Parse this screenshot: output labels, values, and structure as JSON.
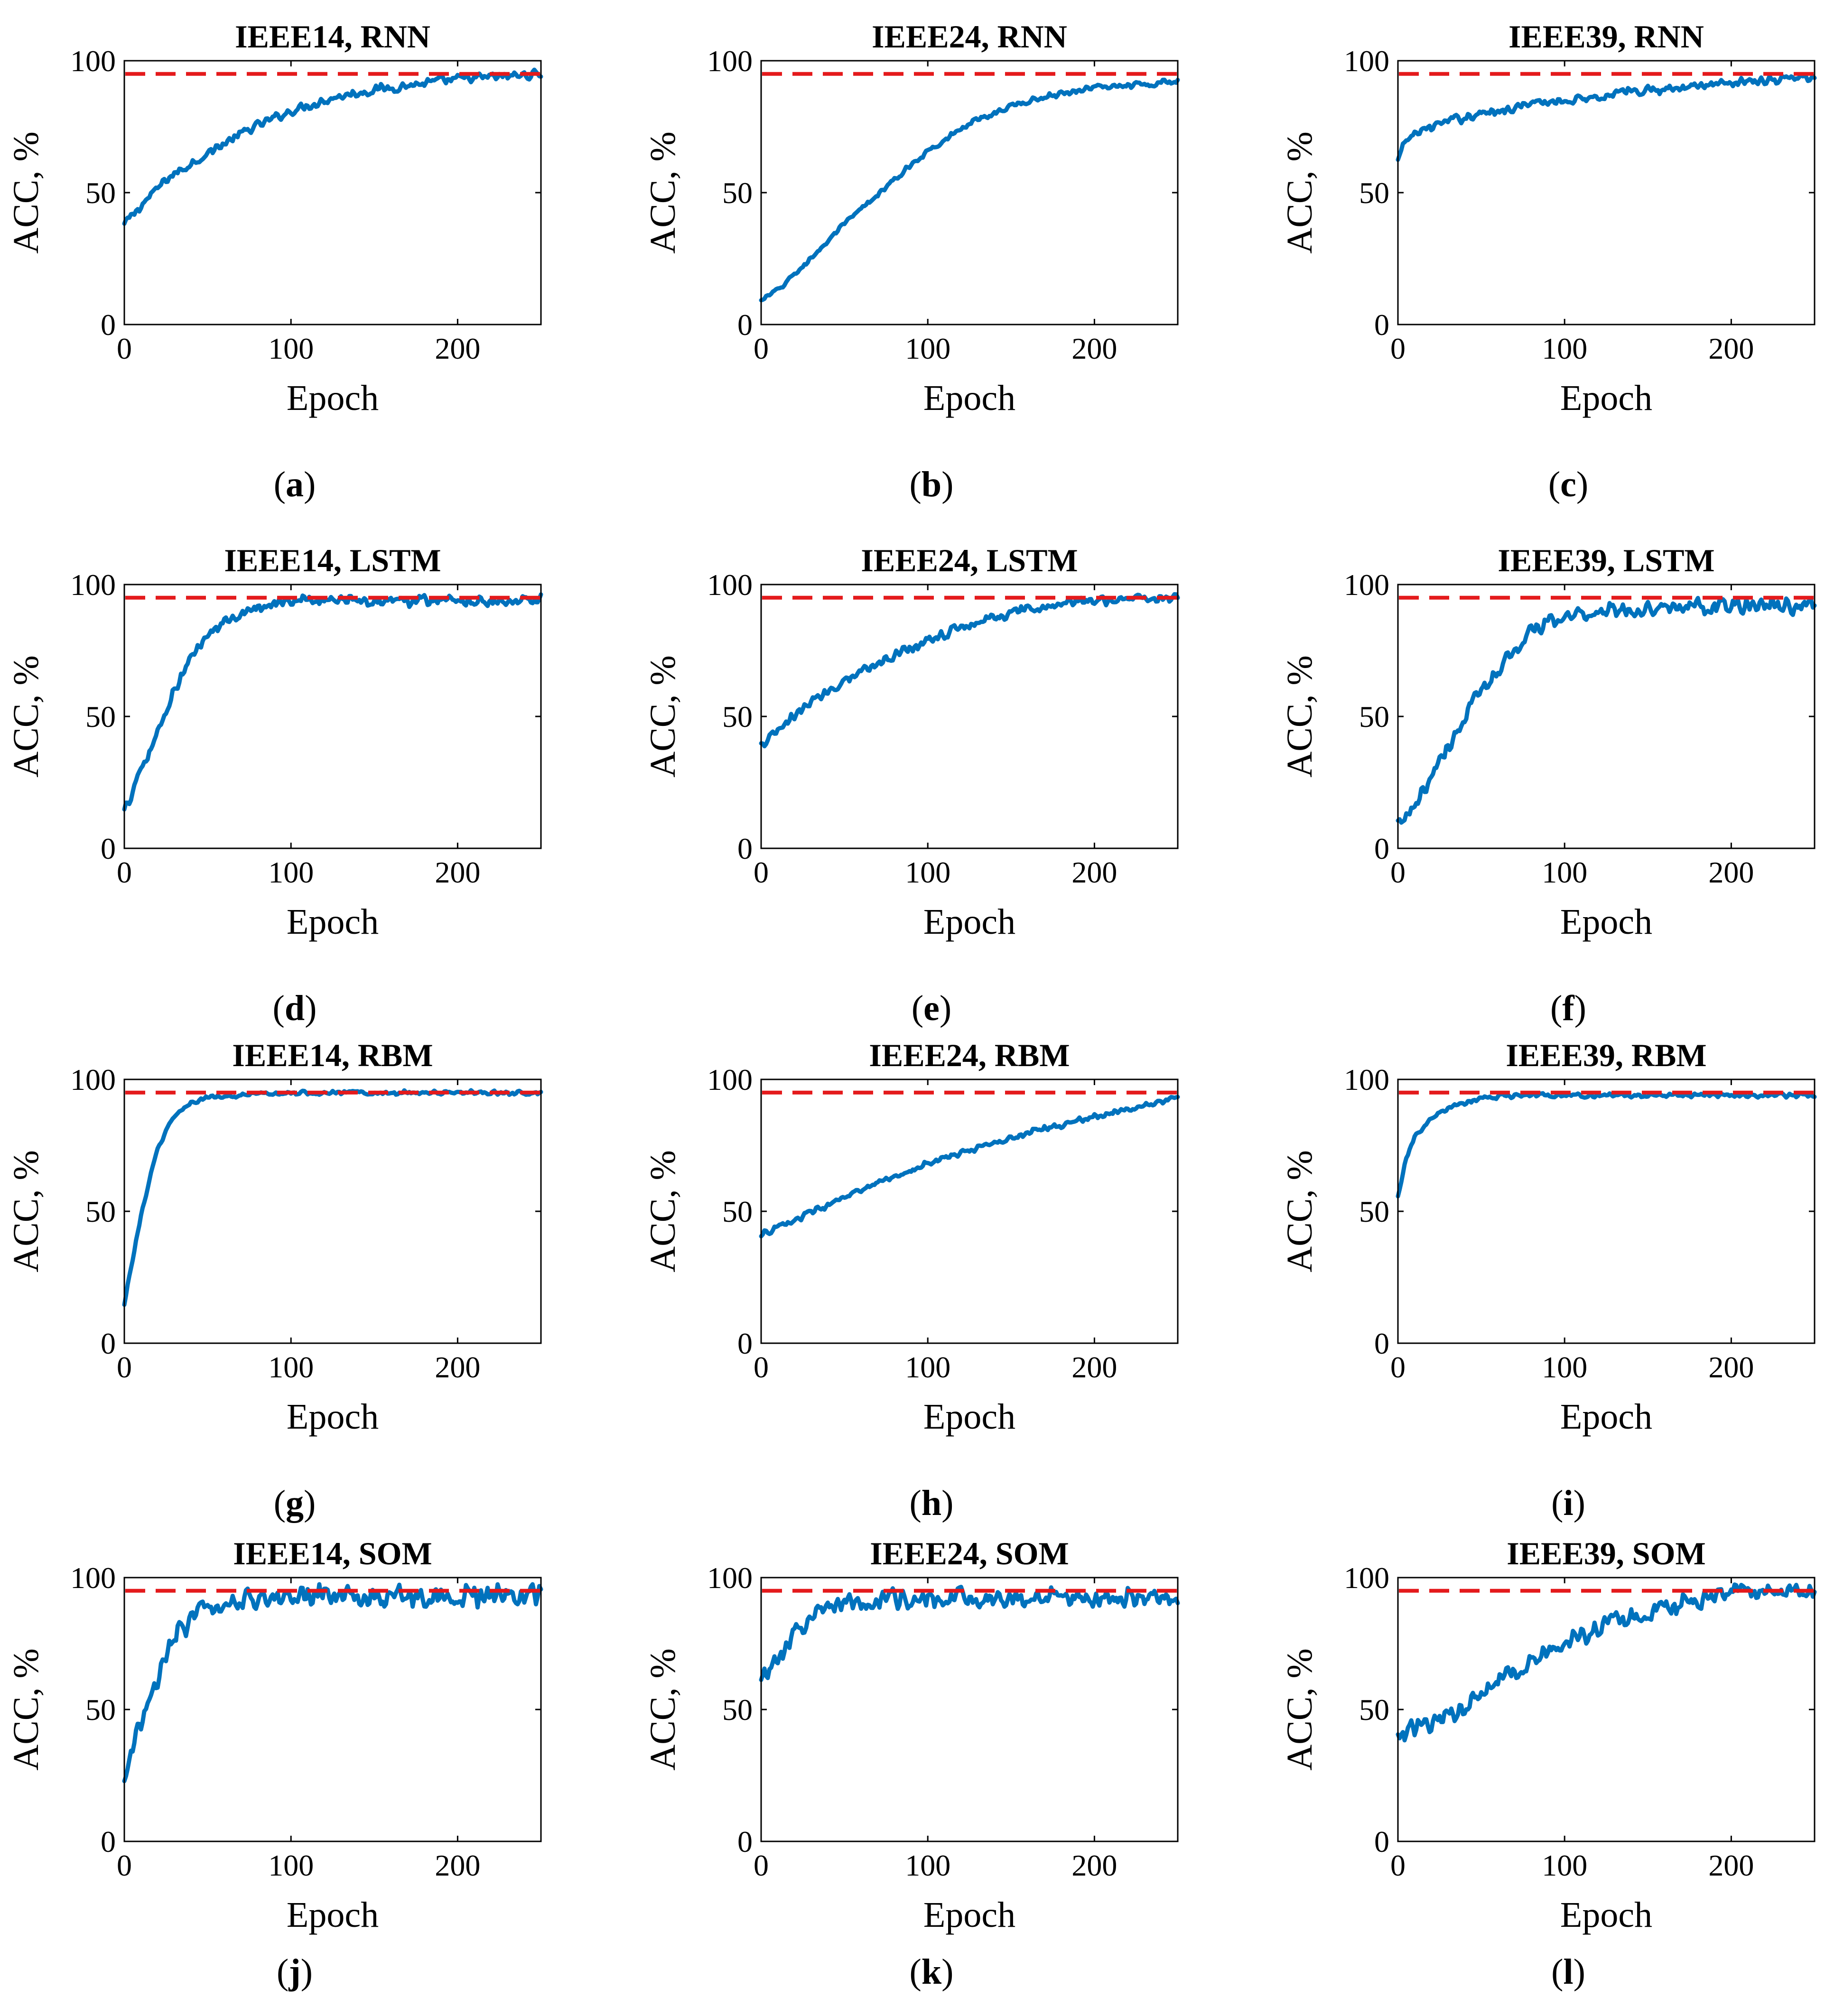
{
  "figure": {
    "rows": 4,
    "cols": 3,
    "reference_line": {
      "value": 95,
      "color": "#e41a1c",
      "style": "dashed"
    },
    "series_color": "#0072bd",
    "frame_color": "#000000"
  },
  "chart_data": [
    {
      "type": "line",
      "title": "IEEE14, RNN",
      "caption_letter": "a",
      "xlabel": "Epoch",
      "ylabel": "ACC, %",
      "xlim": [
        0,
        250
      ],
      "ylim": [
        0,
        100
      ],
      "xticks": [
        0,
        100,
        200
      ],
      "yticks": [
        0,
        50,
        100
      ],
      "reference_y": 95,
      "series": [
        {
          "name": "ACC",
          "x": [
            0,
            10,
            25,
            50,
            75,
            100,
            125,
            150,
            175,
            200,
            225,
            250
          ],
          "y": [
            38,
            45,
            55,
            65,
            74,
            81,
            86,
            89,
            91,
            93,
            94,
            95
          ],
          "noise": 2.0
        }
      ]
    },
    {
      "type": "line",
      "title": "IEEE24, RNN",
      "caption_letter": "b",
      "xlabel": "Epoch",
      "ylabel": "ACC, %",
      "xlim": [
        0,
        250
      ],
      "ylim": [
        0,
        100
      ],
      "xticks": [
        0,
        100,
        200
      ],
      "yticks": [
        0,
        50,
        100
      ],
      "reference_y": 95,
      "series": [
        {
          "name": "ACC",
          "x": [
            0,
            10,
            25,
            50,
            75,
            100,
            125,
            150,
            175,
            200,
            225,
            250
          ],
          "y": [
            9,
            13,
            22,
            38,
            52,
            66,
            76,
            83,
            87,
            90,
            91,
            92
          ],
          "noise": 1.2
        }
      ]
    },
    {
      "type": "line",
      "title": "IEEE39, RNN",
      "caption_letter": "c",
      "xlabel": "Epoch",
      "ylabel": "ACC, %",
      "xlim": [
        0,
        250
      ],
      "ylim": [
        0,
        100
      ],
      "xticks": [
        0,
        100,
        200
      ],
      "yticks": [
        0,
        50,
        100
      ],
      "reference_y": 95,
      "series": [
        {
          "name": "ACC",
          "x": [
            0,
            5,
            15,
            30,
            50,
            75,
            100,
            125,
            150,
            175,
            200,
            225,
            250
          ],
          "y": [
            62,
            70,
            74,
            77,
            80,
            83,
            85,
            87,
            89,
            90,
            92,
            93,
            94
          ],
          "noise": 2.0
        }
      ]
    },
    {
      "type": "line",
      "title": "IEEE14, LSTM",
      "caption_letter": "d",
      "xlabel": "Epoch",
      "ylabel": "ACC, %",
      "xlim": [
        0,
        250
      ],
      "ylim": [
        0,
        100
      ],
      "xticks": [
        0,
        100,
        200
      ],
      "yticks": [
        0,
        50,
        100
      ],
      "reference_y": 95,
      "series": [
        {
          "name": "ACC",
          "x": [
            0,
            5,
            15,
            25,
            35,
            45,
            60,
            75,
            90,
            110,
            130,
            160,
            200,
            250
          ],
          "y": [
            14,
            22,
            36,
            52,
            66,
            77,
            86,
            91,
            93,
            94,
            94,
            94,
            94,
            94
          ],
          "noise": 2.6
        }
      ]
    },
    {
      "type": "line",
      "title": "IEEE24, LSTM",
      "caption_letter": "e",
      "xlabel": "Epoch",
      "ylabel": "ACC, %",
      "xlim": [
        0,
        250
      ],
      "ylim": [
        0,
        100
      ],
      "xticks": [
        0,
        100,
        200
      ],
      "yticks": [
        0,
        50,
        100
      ],
      "reference_y": 95,
      "series": [
        {
          "name": "ACC",
          "x": [
            0,
            10,
            25,
            50,
            75,
            100,
            125,
            150,
            175,
            200,
            225,
            250
          ],
          "y": [
            39,
            44,
            53,
            64,
            72,
            79,
            85,
            89,
            92,
            94,
            95,
            95
          ],
          "noise": 2.3
        }
      ]
    },
    {
      "type": "line",
      "title": "IEEE39, LSTM",
      "caption_letter": "f",
      "xlabel": "Epoch",
      "ylabel": "ACC, %",
      "xlim": [
        0,
        250
      ],
      "ylim": [
        0,
        100
      ],
      "xticks": [
        0,
        100,
        200
      ],
      "yticks": [
        0,
        50,
        100
      ],
      "reference_y": 95,
      "series": [
        {
          "name": "ACC",
          "x": [
            0,
            10,
            20,
            35,
            50,
            65,
            80,
            100,
            120,
            150,
            200,
            250
          ],
          "y": [
            9,
            14,
            28,
            44,
            60,
            72,
            82,
            88,
            90,
            91,
            92,
            92
          ],
          "noise": 3.6
        }
      ]
    },
    {
      "type": "line",
      "title": "IEEE14, RBM",
      "caption_letter": "g",
      "xlabel": "Epoch",
      "ylabel": "ACC, %",
      "xlim": [
        0,
        250
      ],
      "ylim": [
        0,
        100
      ],
      "xticks": [
        0,
        100,
        200
      ],
      "yticks": [
        0,
        50,
        100
      ],
      "reference_y": 95,
      "series": [
        {
          "name": "ACC",
          "x": [
            0,
            5,
            10,
            15,
            20,
            25,
            30,
            40,
            50,
            75,
            100,
            150,
            200,
            250
          ],
          "y": [
            15,
            32,
            48,
            62,
            73,
            81,
            86,
            91,
            93,
            94,
            95,
            95,
            95,
            95
          ],
          "noise": 1.0
        }
      ]
    },
    {
      "type": "line",
      "title": "IEEE24, RBM",
      "caption_letter": "h",
      "xlabel": "Epoch",
      "ylabel": "ACC, %",
      "xlim": [
        0,
        250
      ],
      "ylim": [
        0,
        100
      ],
      "xticks": [
        0,
        100,
        200
      ],
      "yticks": [
        0,
        50,
        100
      ],
      "reference_y": 95,
      "series": [
        {
          "name": "ACC",
          "x": [
            0,
            25,
            50,
            75,
            100,
            125,
            150,
            175,
            200,
            225,
            250
          ],
          "y": [
            41,
            48,
            55,
            62,
            68,
            73,
            78,
            82,
            86,
            89,
            93
          ],
          "noise": 1.3
        }
      ]
    },
    {
      "type": "line",
      "title": "IEEE39, RBM",
      "caption_letter": "i",
      "xlabel": "Epoch",
      "ylabel": "ACC, %",
      "xlim": [
        0,
        250
      ],
      "ylim": [
        0,
        100
      ],
      "xticks": [
        0,
        100,
        200
      ],
      "yticks": [
        0,
        50,
        100
      ],
      "reference_y": 95,
      "series": [
        {
          "name": "ACC",
          "x": [
            0,
            5,
            10,
            20,
            30,
            40,
            50,
            75,
            100,
            150,
            200,
            250
          ],
          "y": [
            56,
            70,
            78,
            85,
            89,
            91,
            93,
            94,
            94,
            94,
            94,
            94
          ],
          "noise": 1.0
        }
      ]
    },
    {
      "type": "line",
      "title": "IEEE14, SOM",
      "caption_letter": "j",
      "xlabel": "Epoch",
      "ylabel": "ACC, %",
      "xlim": [
        0,
        250
      ],
      "ylim": [
        0,
        100
      ],
      "xticks": [
        0,
        100,
        200
      ],
      "yticks": [
        0,
        50,
        100
      ],
      "reference_y": 95,
      "series": [
        {
          "name": "ACC",
          "x": [
            0,
            5,
            10,
            20,
            30,
            40,
            50,
            60,
            80,
            100,
            150,
            200,
            250
          ],
          "y": [
            24,
            34,
            45,
            62,
            76,
            85,
            89,
            91,
            92,
            93,
            93,
            93,
            93
          ],
          "noise": 5.0
        }
      ]
    },
    {
      "type": "line",
      "title": "IEEE24, SOM",
      "caption_letter": "k",
      "xlabel": "Epoch",
      "ylabel": "ACC, %",
      "xlim": [
        0,
        250
      ],
      "ylim": [
        0,
        100
      ],
      "xticks": [
        0,
        100,
        200
      ],
      "yticks": [
        0,
        50,
        100
      ],
      "reference_y": 95,
      "series": [
        {
          "name": "ACC",
          "x": [
            0,
            10,
            20,
            30,
            40,
            50,
            75,
            100,
            150,
            200,
            250
          ],
          "y": [
            62,
            70,
            79,
            86,
            89,
            91,
            92,
            92,
            92,
            92,
            92
          ],
          "noise": 4.6
        }
      ]
    },
    {
      "type": "line",
      "title": "IEEE39, SOM",
      "caption_letter": "l",
      "xlabel": "Epoch",
      "ylabel": "ACC, %",
      "xlim": [
        0,
        250
      ],
      "ylim": [
        0,
        100
      ],
      "xticks": [
        0,
        100,
        200
      ],
      "yticks": [
        0,
        50,
        100
      ],
      "reference_y": 95,
      "series": [
        {
          "name": "ACC",
          "x": [
            0,
            25,
            50,
            75,
            100,
            125,
            150,
            175,
            200,
            225,
            250
          ],
          "y": [
            41,
            45,
            56,
            67,
            75,
            82,
            87,
            91,
            94,
            95,
            96
          ],
          "noise": 4.2
        }
      ]
    }
  ]
}
